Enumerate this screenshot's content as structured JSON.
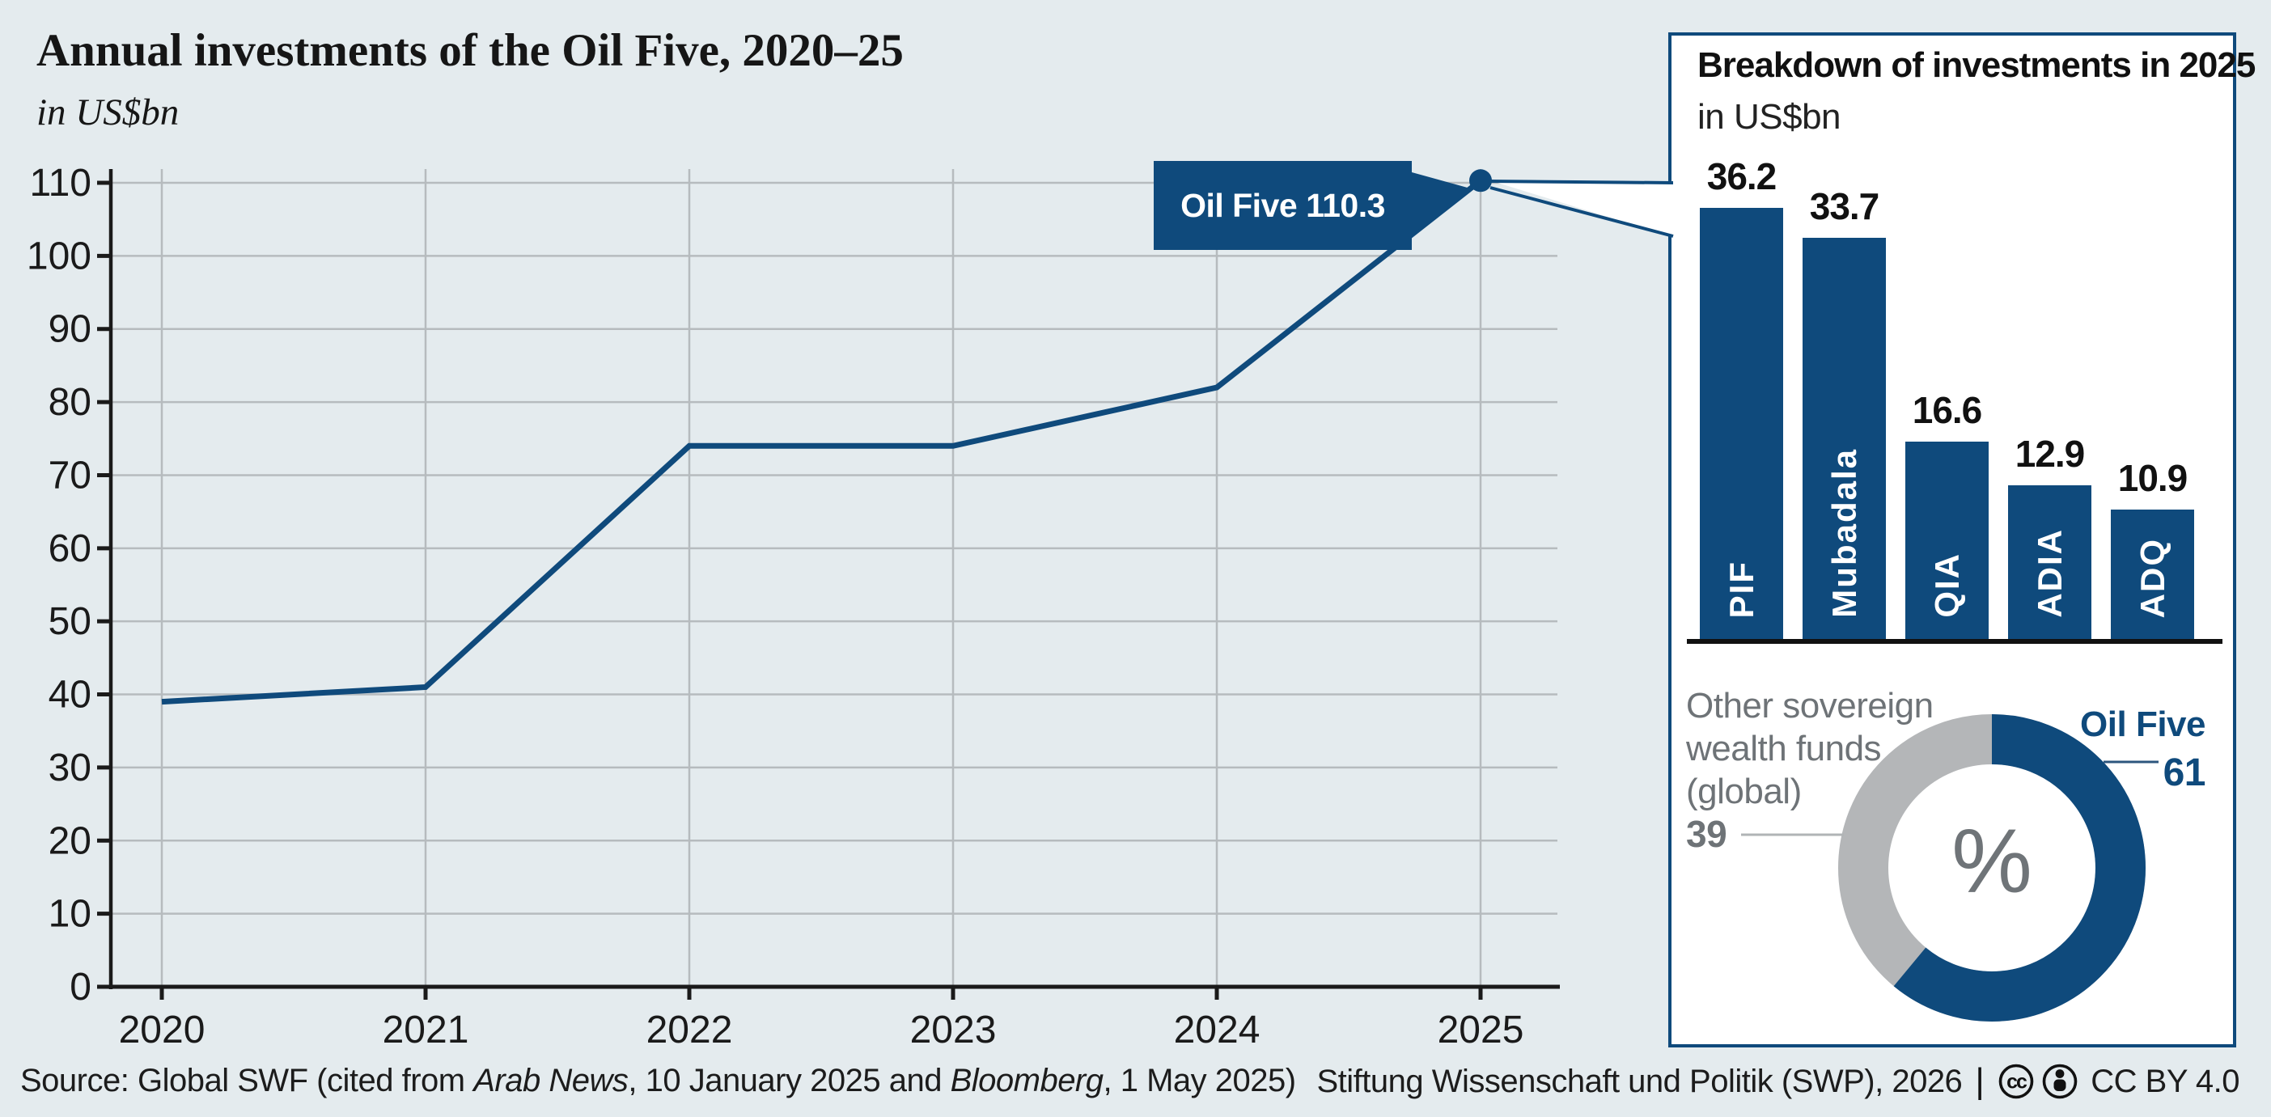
{
  "header": {
    "title": "Annual investments of the Oil Five, 2020–25",
    "subtitle": "in US$bn"
  },
  "panel": {
    "title": "Breakdown of investments in 2025",
    "subtitle": "in US$bn"
  },
  "footer": {
    "source_prefix": "Source: Global SWF (cited from ",
    "source_italic_1": "Arab News",
    "source_middle": ", 10 January 2025 and ",
    "source_italic_2": "Bloomberg",
    "source_suffix": ", 1 May 2025)",
    "credit": "Stiftung Wissenschaft und Politik (SWP), 2026",
    "separator": "|",
    "license": "CC BY 4.0"
  },
  "colors": {
    "blue": "#0f4a7c",
    "background": "#e4ebee",
    "grid": "#b6bbbe",
    "axis": "#1a1a1a",
    "donut_gray": "#b4b6b8",
    "gray_text": "#6e7377",
    "leader_gray": "#b0b4b6",
    "leader_blue": "#2d567e",
    "white": "#ffffff"
  },
  "chart_data": [
    {
      "type": "line",
      "name": "annual-investments-line",
      "title": "Annual investments of the Oil Five, 2020–25",
      "unit": "US$bn",
      "x": [
        "2020",
        "2021",
        "2022",
        "2023",
        "2024",
        "2025"
      ],
      "values": [
        39,
        41,
        74,
        74,
        82,
        110.3
      ],
      "ylim": [
        0,
        110
      ],
      "yticks": [
        0,
        10,
        20,
        30,
        40,
        50,
        60,
        70,
        80,
        90,
        100,
        110
      ],
      "grid": true,
      "legend_position": "none",
      "annotation": {
        "label": "Oil Five 110.3",
        "x": "2025",
        "y": 110.3
      }
    },
    {
      "type": "bar",
      "name": "breakdown-2025-bars",
      "title": "Breakdown of investments in 2025",
      "unit": "US$bn",
      "categories": [
        "PIF",
        "Mubadala",
        "QIA",
        "ADIA",
        "ADQ"
      ],
      "values": [
        36.2,
        33.7,
        16.6,
        12.9,
        10.9
      ]
    },
    {
      "type": "donut",
      "name": "oil-five-share-donut",
      "unit": "%",
      "center_label": "%",
      "slices": [
        {
          "label": "Oil Five",
          "value": 61
        },
        {
          "label": "Other sovereign wealth funds (global)",
          "value": 39
        }
      ],
      "label_left_lines": [
        "Other sovereign",
        "wealth funds",
        "(global)"
      ],
      "start_angle_deg": 0,
      "direction": "clockwise"
    }
  ]
}
